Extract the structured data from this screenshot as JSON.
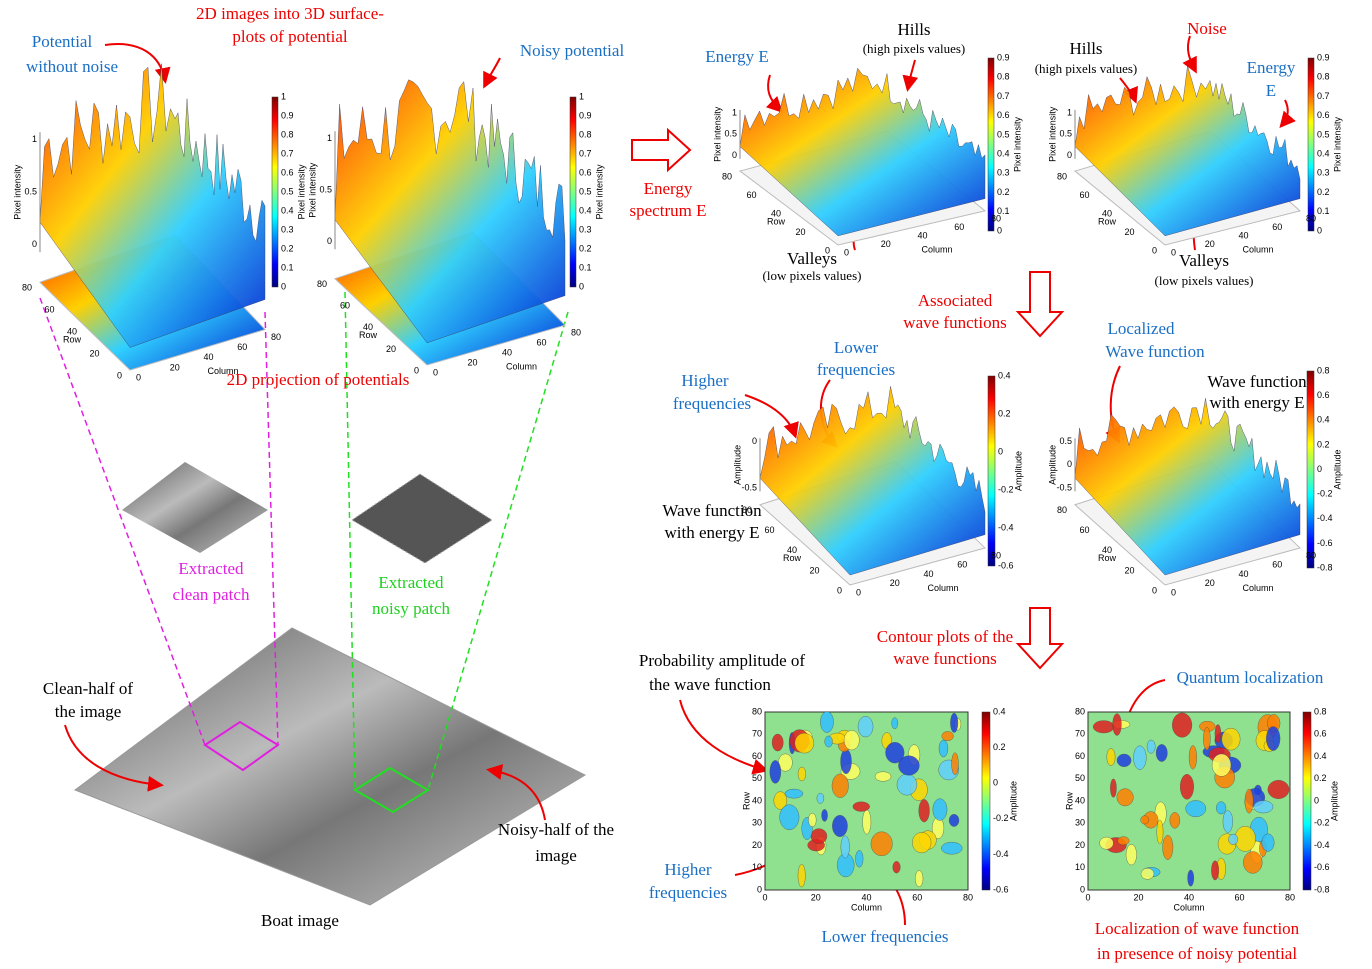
{
  "annotations": [
    "2D images into 3D surface-",
    "plots of potential",
    "Potential",
    "without noise",
    "Noisy potential",
    "2D projection of potentials",
    "Extracted",
    "clean patch",
    "Extracted",
    "noisy patch",
    "Clean-half of",
    "the image",
    "Noisy-half of the",
    "image",
    "Boat image",
    "Energy",
    "spectrum E",
    "Energy E",
    "Hills",
    "(high pixels values)",
    "Valleys",
    "(low pixels values)",
    "Hills",
    "(high pixels values)",
    "Noise",
    "Energy",
    "E",
    "Valleys",
    "(low pixels values)",
    "Associated",
    "wave functions",
    "Localized",
    "Wave function",
    "Wave function",
    "with energy E",
    "Lower",
    "frequencies",
    "Higher",
    "frequencies",
    "Wave function",
    "with energy E",
    "Contour plots of the",
    "wave functions",
    "Quantum localization",
    "Probability amplitude of",
    "the wave function",
    "Higher",
    "frequencies",
    "Lower frequencies",
    "Localization of wave function",
    "in presence of noisy potential"
  ],
  "plots": [
    {
      "z_label": "Pixel intensity",
      "z_ticks": [
        "0",
        "0.5",
        "1"
      ],
      "row_label": "Row",
      "row_ticks": [
        "0",
        "20",
        "40",
        "60",
        "80"
      ],
      "column_label": "Column",
      "column_ticks": [
        "0",
        "20",
        "40",
        "60",
        "80"
      ],
      "colorbar_label": "Pixel intensity",
      "colorbar_ticks": [
        "1",
        "0.9",
        "0.8",
        "0.7",
        "0.6",
        "0.5",
        "0.4",
        "0.3",
        "0.2",
        "0.1",
        "0"
      ]
    },
    {
      "z_label": "Pixel intensity",
      "z_ticks": [
        "0",
        "0.5",
        "1"
      ],
      "row_label": "Row",
      "row_ticks": [
        "0",
        "20",
        "40",
        "60",
        "80"
      ],
      "column_label": "Column",
      "column_ticks": [
        "0",
        "20",
        "40",
        "60",
        "80"
      ],
      "colorbar_label": "Pixel intensity",
      "colorbar_ticks": [
        "1",
        "0.9",
        "0.8",
        "0.7",
        "0.6",
        "0.5",
        "0.4",
        "0.3",
        "0.2",
        "0.1",
        "0"
      ]
    },
    {
      "z_label": "Pixel intensity",
      "z_ticks": [
        "0",
        "0.5",
        "1"
      ],
      "row_label": "Row",
      "row_ticks": [
        "0",
        "20",
        "40",
        "60",
        "80"
      ],
      "column_label": "Column",
      "column_ticks": [
        "0",
        "20",
        "40",
        "60",
        "80"
      ],
      "colorbar_label": "Pixel intensity",
      "colorbar_ticks": [
        "0.9",
        "0.8",
        "0.7",
        "0.6",
        "0.5",
        "0.4",
        "0.3",
        "0.2",
        "0.1",
        "0"
      ]
    },
    {
      "z_label": "Pixel intensity",
      "z_ticks": [
        "0",
        "0.5",
        "1"
      ],
      "row_label": "Row",
      "row_ticks": [
        "0",
        "20",
        "40",
        "60",
        "80"
      ],
      "column_label": "Column",
      "column_ticks": [
        "0",
        "20",
        "40",
        "60",
        "80"
      ],
      "colorbar_label": "Pixel intensity",
      "colorbar_ticks": [
        "0.9",
        "0.8",
        "0.7",
        "0.6",
        "0.5",
        "0.4",
        "0.3",
        "0.2",
        "0.1",
        "0"
      ]
    },
    {
      "z_label": "Amplitude",
      "z_ticks": [
        "-0.5",
        "0"
      ],
      "row_label": "Row",
      "row_ticks": [
        "0",
        "20",
        "40",
        "60",
        "80"
      ],
      "column_label": "Column",
      "column_ticks": [
        "0",
        "20",
        "40",
        "60",
        "80"
      ],
      "colorbar_label": "Amplitude",
      "colorbar_ticks": [
        "0.4",
        "0.2",
        "0",
        "-0.2",
        "-0.4",
        "-0.6"
      ]
    },
    {
      "z_label": "Amplitude",
      "z_ticks": [
        "-0.5",
        "0",
        "0.5"
      ],
      "row_label": "Row",
      "row_ticks": [
        "0",
        "20",
        "40",
        "60",
        "80"
      ],
      "column_label": "Column",
      "column_ticks": [
        "0",
        "20",
        "40",
        "60",
        "80"
      ],
      "colorbar_label": "Amplitude",
      "colorbar_ticks": [
        "0.8",
        "0.6",
        "0.4",
        "0.2",
        "0",
        "-0.2",
        "-0.4",
        "-0.6",
        "-0.8"
      ]
    },
    {
      "row_label": "Row",
      "row_ticks": [
        "80",
        "70",
        "60",
        "50",
        "40",
        "30",
        "20",
        "10",
        "0"
      ],
      "column_label": "Column",
      "column_ticks": [
        "0",
        "20",
        "40",
        "60",
        "80"
      ],
      "colorbar_label": "Amplitude",
      "colorbar_ticks": [
        "0.4",
        "0.2",
        "0",
        "-0.2",
        "-0.4",
        "-0.6"
      ]
    },
    {
      "row_label": "Row",
      "row_ticks": [
        "80",
        "70",
        "60",
        "50",
        "40",
        "30",
        "20",
        "10",
        "0"
      ],
      "column_label": "Column",
      "column_ticks": [
        "0",
        "20",
        "40",
        "60",
        "80"
      ],
      "colorbar_label": "Amplitude",
      "colorbar_ticks": [
        "0.8",
        "0.6",
        "0.4",
        "0.2",
        "0",
        "-0.2",
        "-0.4",
        "-0.6",
        "-0.8"
      ]
    }
  ]
}
